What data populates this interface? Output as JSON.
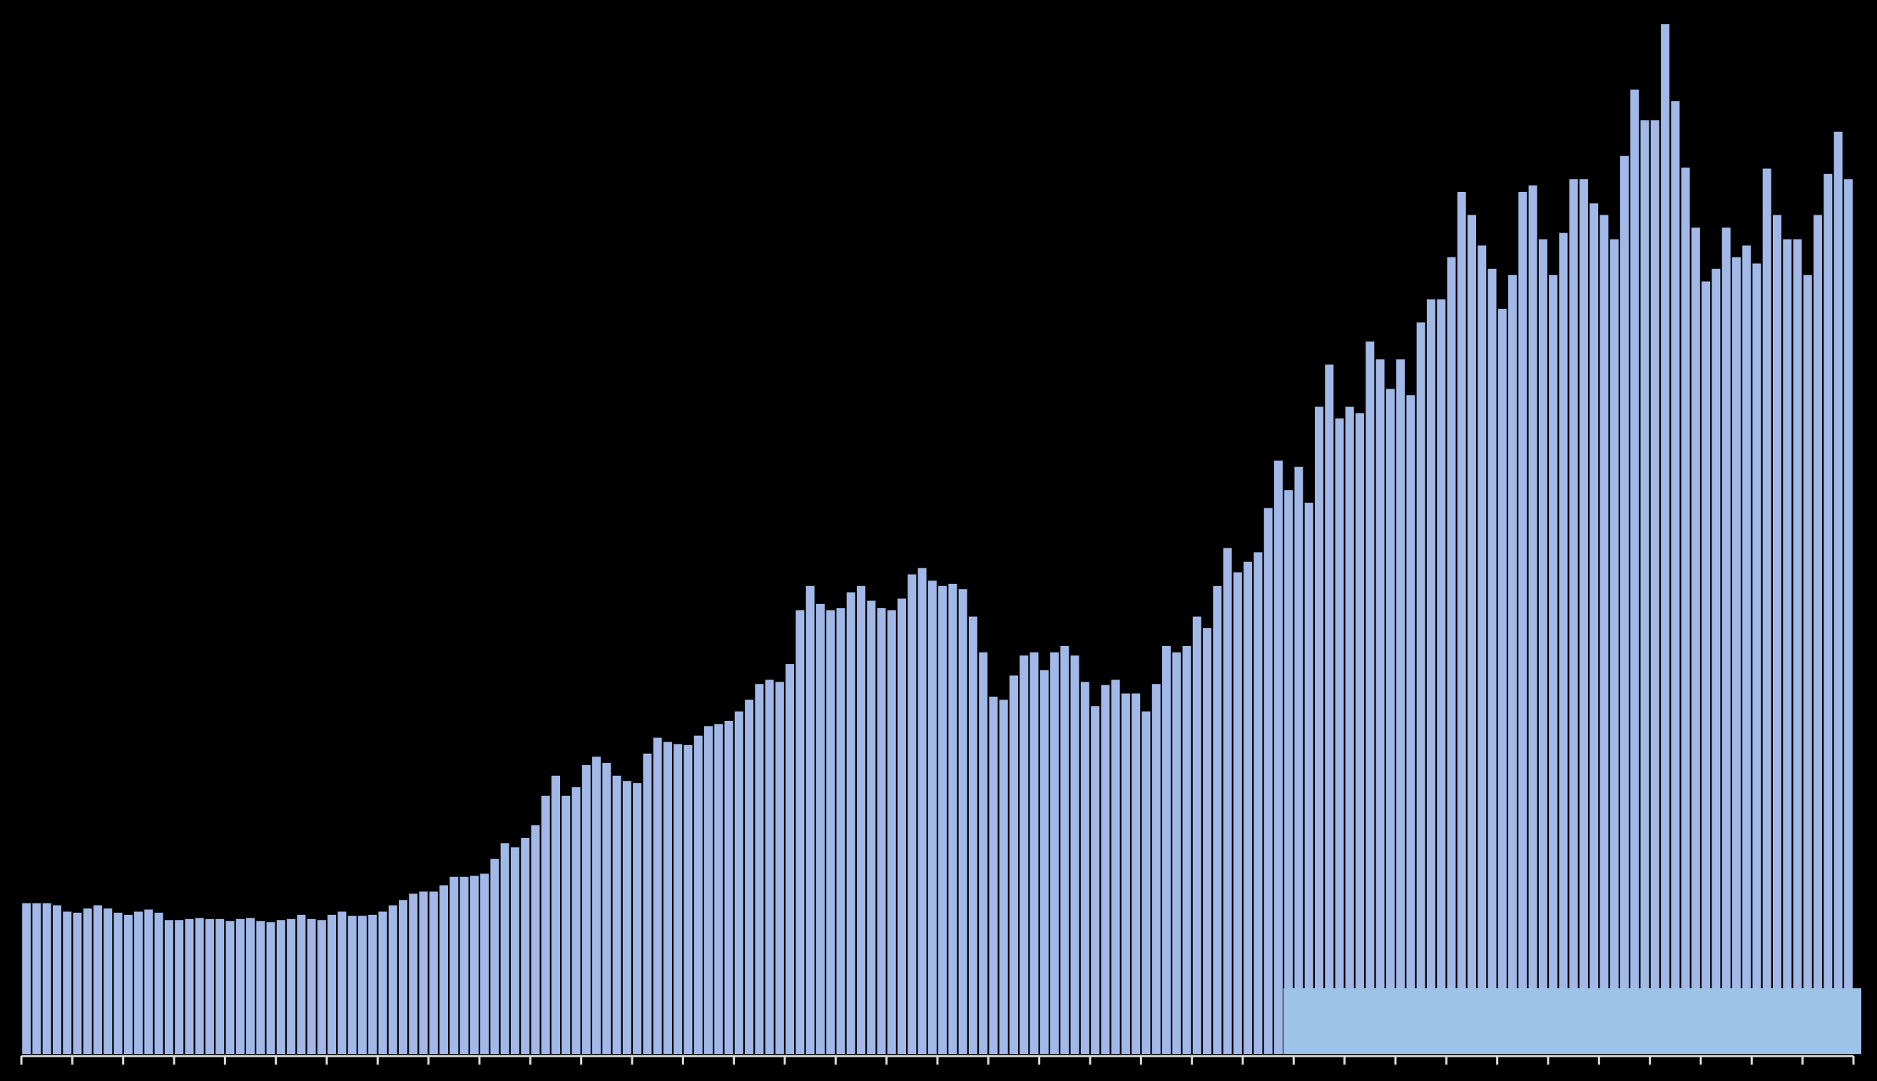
{
  "chart_data": {
    "type": "bar",
    "color": "#a2b9e8",
    "values": [
      14.3,
      14.3,
      14.3,
      14.1,
      13.5,
      13.4,
      13.8,
      14.1,
      13.8,
      13.4,
      13.2,
      13.5,
      13.7,
      13.4,
      12.7,
      12.7,
      12.8,
      12.9,
      12.8,
      12.8,
      12.6,
      12.8,
      12.9,
      12.6,
      12.5,
      12.7,
      12.8,
      13.2,
      12.8,
      12.7,
      13.2,
      13.5,
      13.1,
      13.1,
      13.2,
      13.5,
      14.1,
      14.6,
      15.2,
      15.4,
      15.4,
      16.0,
      16.8,
      16.8,
      16.9,
      17.1,
      18.5,
      20.0,
      19.6,
      20.5,
      21.7,
      24.5,
      26.4,
      24.5,
      25.3,
      27.4,
      28.2,
      27.6,
      26.4,
      25.9,
      25.7,
      28.5,
      30.0,
      29.6,
      29.4,
      29.3,
      30.2,
      31.1,
      31.3,
      31.6,
      32.5,
      33.6,
      35.1,
      35.5,
      35.3,
      37.0,
      42.1,
      44.4,
      42.7,
      42.1,
      42.3,
      43.8,
      44.4,
      43.0,
      42.3,
      42.1,
      43.2,
      45.5,
      46.1,
      44.9,
      44.4,
      44.6,
      44.1,
      41.5,
      38.1,
      33.9,
      33.6,
      35.9,
      37.8,
      38.1,
      36.4,
      38.1,
      38.7,
      37.8,
      35.3,
      33.0,
      35.0,
      35.5,
      34.2,
      34.2,
      32.5,
      35.1,
      38.7,
      38.1,
      38.7,
      41.5,
      40.4,
      44.4,
      48.0,
      45.7,
      46.7,
      47.6,
      51.8,
      56.3,
      53.5,
      55.7,
      52.3,
      61.4,
      65.4,
      60.3,
      61.4,
      60.8,
      67.6,
      65.9,
      63.1,
      65.9,
      62.5,
      69.4,
      71.6,
      71.6,
      75.6,
      81.8,
      79.6,
      76.7,
      74.5,
      70.7,
      73.9,
      81.8,
      82.4,
      77.3,
      73.9,
      77.9,
      83.0,
      83.0,
      80.7,
      79.6,
      77.3,
      85.2,
      91.5,
      88.6,
      88.6,
      97.7,
      90.4,
      84.1,
      78.4,
      73.3,
      74.5,
      78.4,
      75.6,
      76.7,
      75.0,
      84.0,
      79.6,
      77.3,
      77.3,
      73.9,
      79.6,
      83.5,
      87.5,
      83.0
    ],
    "xlim": [
      0,
      180
    ],
    "xticks": [
      0,
      5,
      10,
      15,
      20,
      25,
      30,
      35,
      40,
      45,
      50,
      55,
      60,
      65,
      70,
      75,
      80,
      85,
      90,
      95,
      100,
      105,
      110,
      115,
      120,
      125,
      130,
      135,
      140,
      145,
      150,
      155,
      160,
      165,
      170,
      175,
      180
    ],
    "ylim": [
      0,
      100
    ]
  }
}
